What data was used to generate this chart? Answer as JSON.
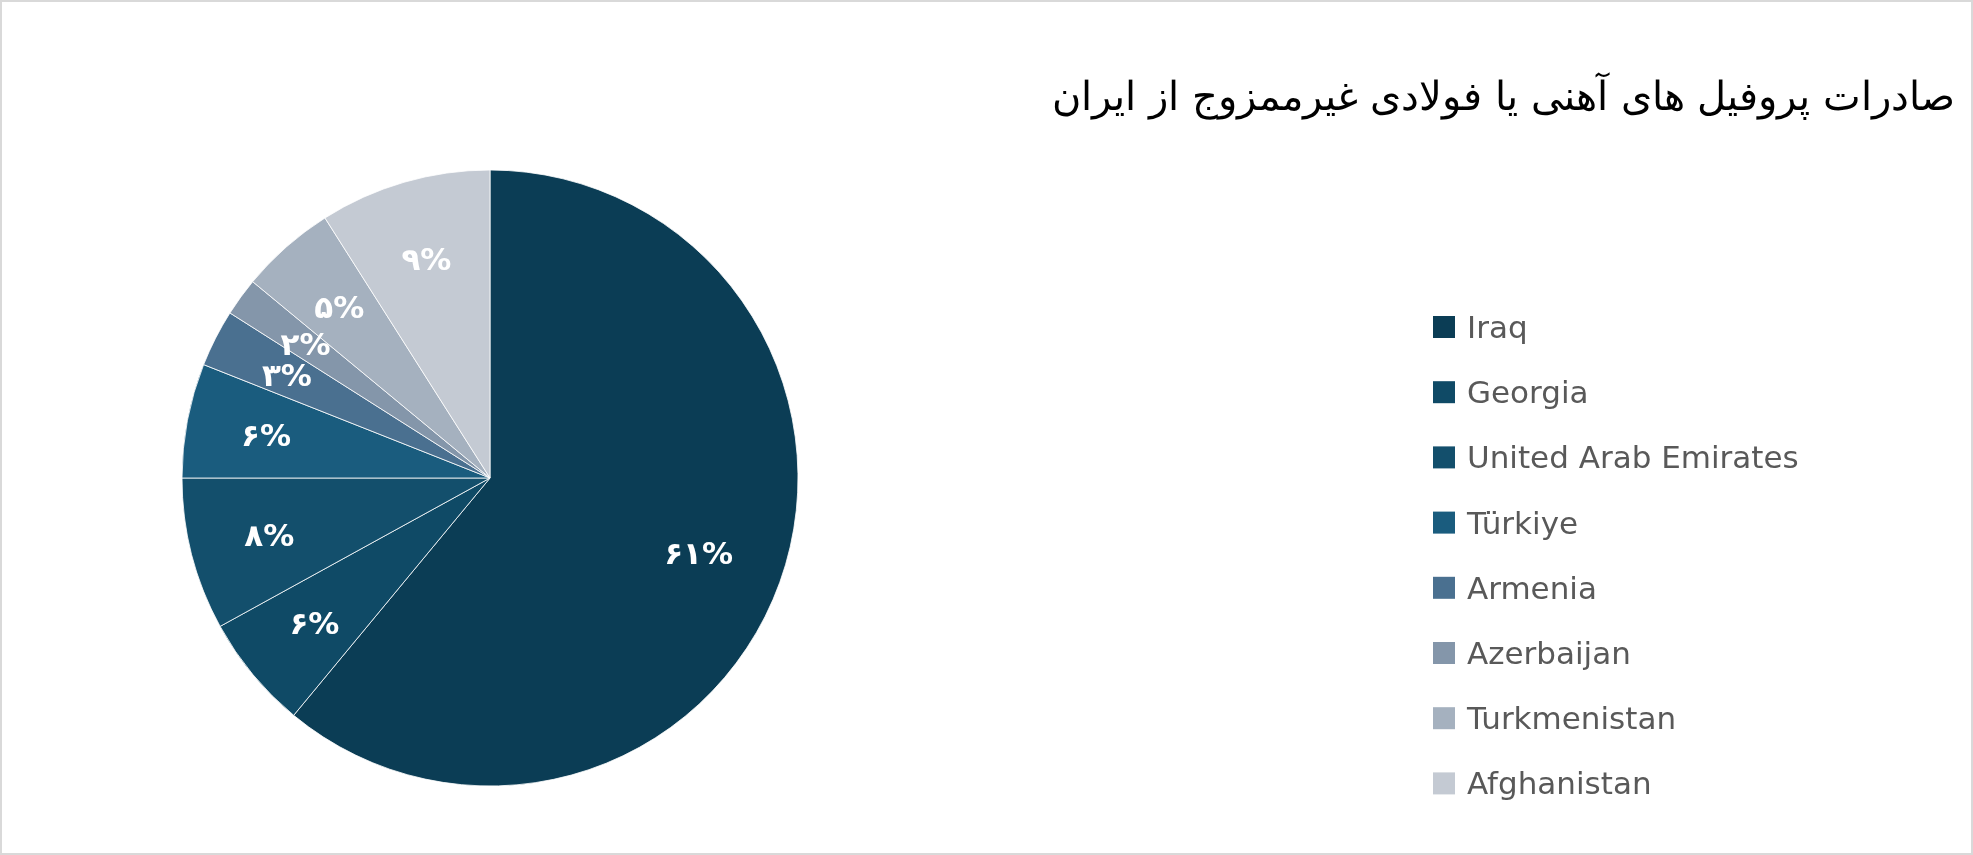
{
  "chart_data": {
    "type": "pie",
    "title": "صادرات پروفیل های آهنی یا فولادی غیرممزوج  از ایران",
    "categories": [
      "Iraq",
      "Georgia",
      "United Arab Emirates",
      "Türkiye",
      "Armenia",
      "Azerbaijan",
      "Turkmenistan",
      "Afghanistan"
    ],
    "values": [
      61,
      6,
      8,
      6,
      3,
      2,
      5,
      9
    ],
    "colors": [
      "#0b3d55",
      "#0f4a66",
      "#134f6c",
      "#1a5c7e",
      "#4a7090",
      "#8496aa",
      "#a5b1bf",
      "#c4cad3"
    ],
    "value_labels": [
      "۶۱%",
      "۶%",
      "۸%",
      "۶%",
      "۳%",
      "۲%",
      "۵%",
      "۹%"
    ],
    "legend": "right"
  }
}
